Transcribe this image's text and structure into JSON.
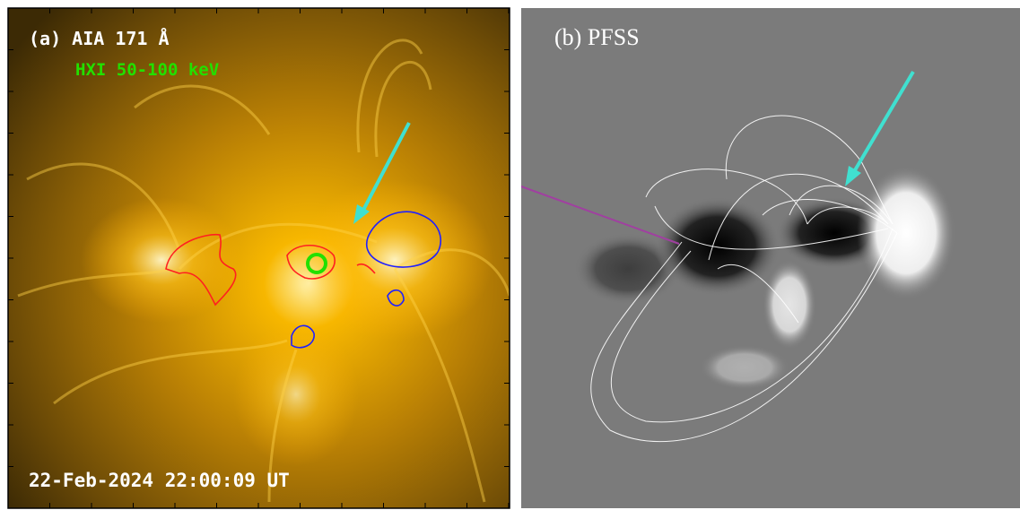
{
  "panels": [
    {
      "label": "(a) AIA 171 Å",
      "overlay": "HXI 50-100 keV",
      "timestamp": "22-Feb-2024 22:00:09 UT"
    },
    {
      "label": "(b) PFSS"
    }
  ]
}
